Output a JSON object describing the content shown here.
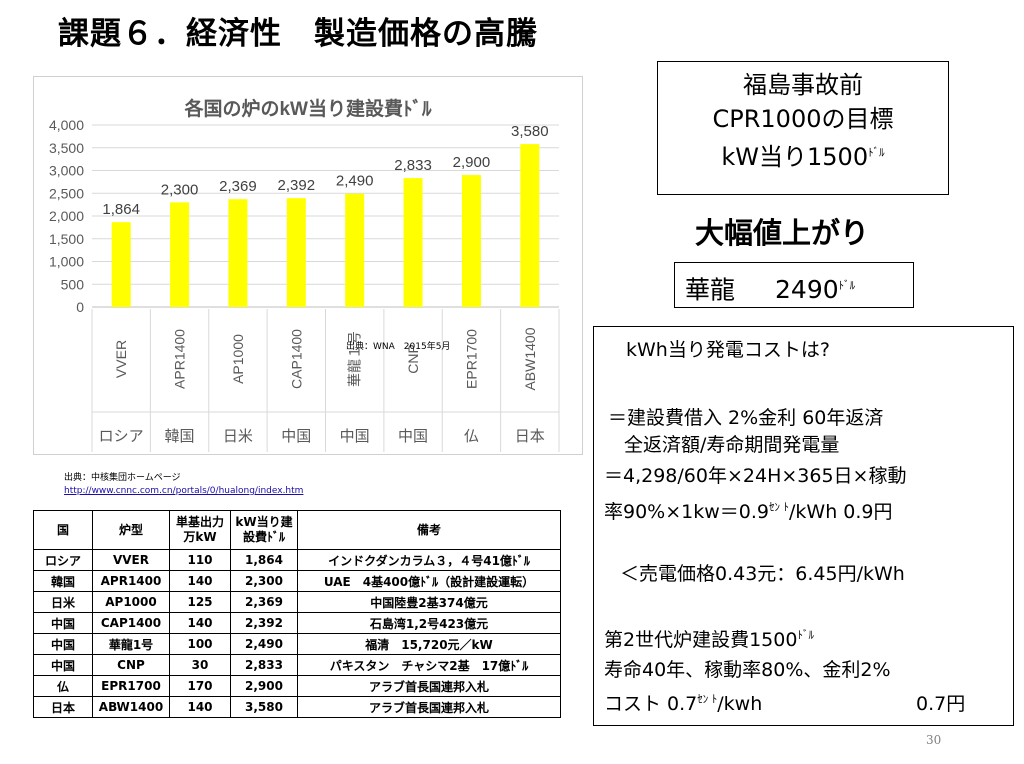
{
  "slide": {
    "title": "課題６．経済性　製造価格の高騰",
    "page_number": "30"
  },
  "chart_data": {
    "type": "bar",
    "title": "各国の炉のkW当り建設費ﾄﾞﾙ",
    "categories": [
      "VVER",
      "APR1400",
      "AP1000",
      "CAP1400",
      "華龍１号",
      "CNP",
      "EPR1700",
      "ABW1400"
    ],
    "countries": [
      "ロシア",
      "韓国",
      "日米",
      "中国",
      "中国",
      "中国",
      "仏",
      "日本"
    ],
    "values": [
      1864,
      2300,
      2369,
      2392,
      2490,
      2833,
      2900,
      3580
    ],
    "value_labels": [
      "1,864",
      "2,300",
      "2,369",
      "2,392",
      "2,490",
      "2,833",
      "2,900",
      "3,580"
    ],
    "ylim": [
      0,
      4000
    ],
    "yticks": [
      "0",
      "500",
      "1,000",
      "1,500",
      "2,000",
      "2,500",
      "3,000",
      "3,500",
      "4,000"
    ],
    "bar_color": "#ffff00",
    "grid": true,
    "source": "出典：WNA　2015年5月"
  },
  "source_note": {
    "label": "出典：中核集団ホームページ",
    "url": "http://www.cnnc.com.cn/portals/0/hualong/index.htm"
  },
  "table": {
    "headers": [
      "国",
      "炉型",
      "単基出力万kW",
      "kW当り建設費ﾄﾞﾙ",
      "備考"
    ],
    "rows": [
      [
        "ロシア",
        "VVER",
        "110",
        "1,864",
        "インドクダンカラム３，４号41億ﾄﾞﾙ"
      ],
      [
        "韓国",
        "APR1400",
        "140",
        "2,300",
        "UAE　4基400億ﾄﾞﾙ（設計建設運転）"
      ],
      [
        "日米",
        "AP1000",
        "125",
        "2,369",
        "中国陸豊2基374億元"
      ],
      [
        "中国",
        "CAP1400",
        "140",
        "2,392",
        "石島湾1,2号423億元"
      ],
      [
        "中国",
        "華龍1号",
        "100",
        "2,490",
        "福清　15,720元／kW"
      ],
      [
        "中国",
        "CNP",
        "30",
        "2,833",
        "パキスタン　チャシマ2基　17億ﾄﾞﾙ"
      ],
      [
        "仏",
        "EPR1700",
        "170",
        "2,900",
        "アラブ首長国連邦入札"
      ],
      [
        "日本",
        "ABW1400",
        "140",
        "3,580",
        "アラブ首長国連邦入札"
      ]
    ]
  },
  "target_box": {
    "line1": "福島事故前",
    "line2": "CPR1000の目標",
    "line3": "kW当り1500",
    "unit": "ﾄﾞﾙ"
  },
  "price_up": "大幅値上がり",
  "hualong_box": {
    "name": "華龍",
    "price": "2490",
    "unit": "ﾄﾞﾙ"
  },
  "cost_box": {
    "heading": "kWh当り発電コストは?",
    "line1": "＝建設費借入  2%金利  60年返済",
    "line2": "全返済額/寿命期間発電量",
    "line3": "＝4,298/60年×24H×365日×稼動",
    "line4a": "率90%×1kw＝0.9",
    "sen": "ｾﾝ ﾄ",
    "line4b": "/kWh  0.9円",
    "line5": "＜売電価格0.43元：6.45円/kWh",
    "line6a": "第2世代炉建設費1500",
    "dollar": "ﾄﾞﾙ",
    "line7": "寿命40年、稼動率80%、金利2%",
    "line8a": "コスト  0.7",
    "line8b": "/kwh",
    "line8c": "0.7円"
  }
}
